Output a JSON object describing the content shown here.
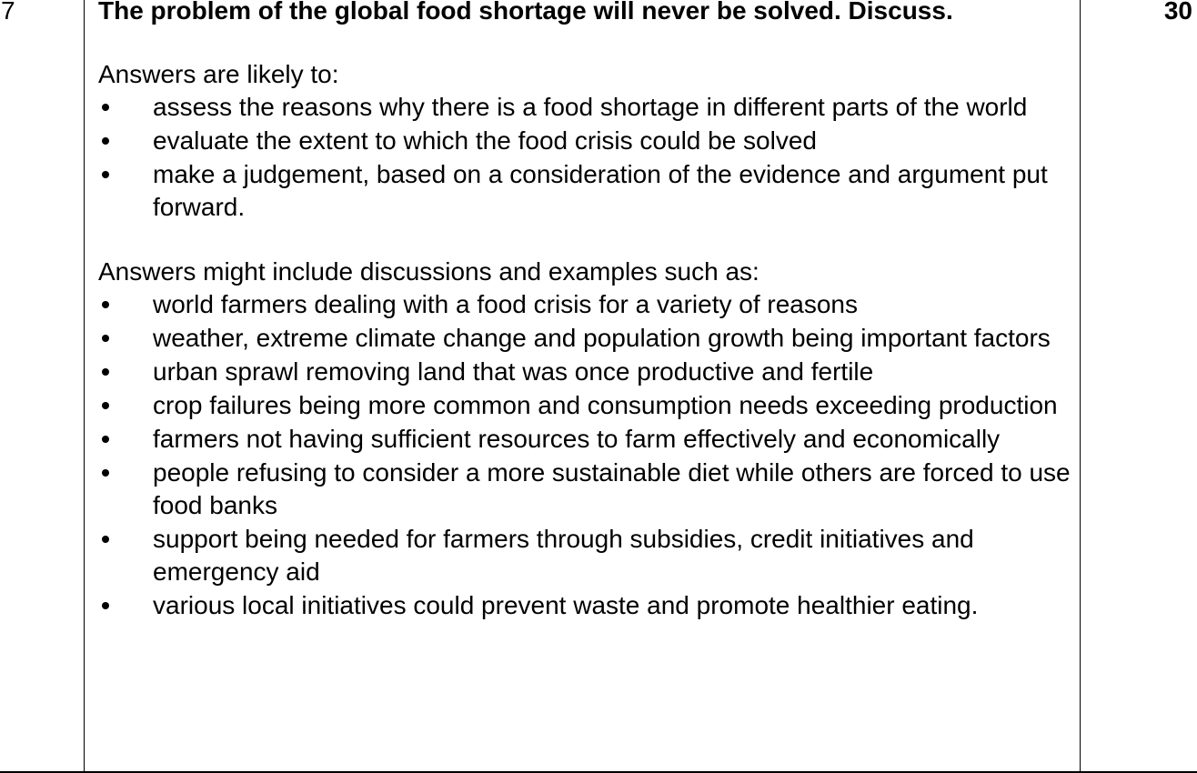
{
  "question_number": "7",
  "marks": "30",
  "question": "The problem of the global food shortage will never be solved. Discuss.",
  "section1": {
    "intro": "Answers are likely to:",
    "items": [
      "assess the reasons why there is a food shortage in different parts of the world",
      "evaluate the extent to which the food crisis could be solved",
      "make a judgement, based on a consideration of the evidence and argument put forward."
    ]
  },
  "section2": {
    "intro": "Answers might include discussions and examples such as:",
    "items": [
      "world farmers dealing with a food crisis for a variety of reasons",
      "weather, extreme climate change and population growth being important factors",
      "urban sprawl removing land that was once productive and fertile",
      "crop failures being more common and consumption needs exceeding production",
      "farmers not having sufficient resources to farm effectively and economically",
      "people refusing to consider a more sustainable diet while others are forced to use food banks",
      "support being needed for farmers through subsidies, credit initiatives and emergency aid",
      "various local initiatives could prevent waste and promote healthier eating."
    ]
  }
}
